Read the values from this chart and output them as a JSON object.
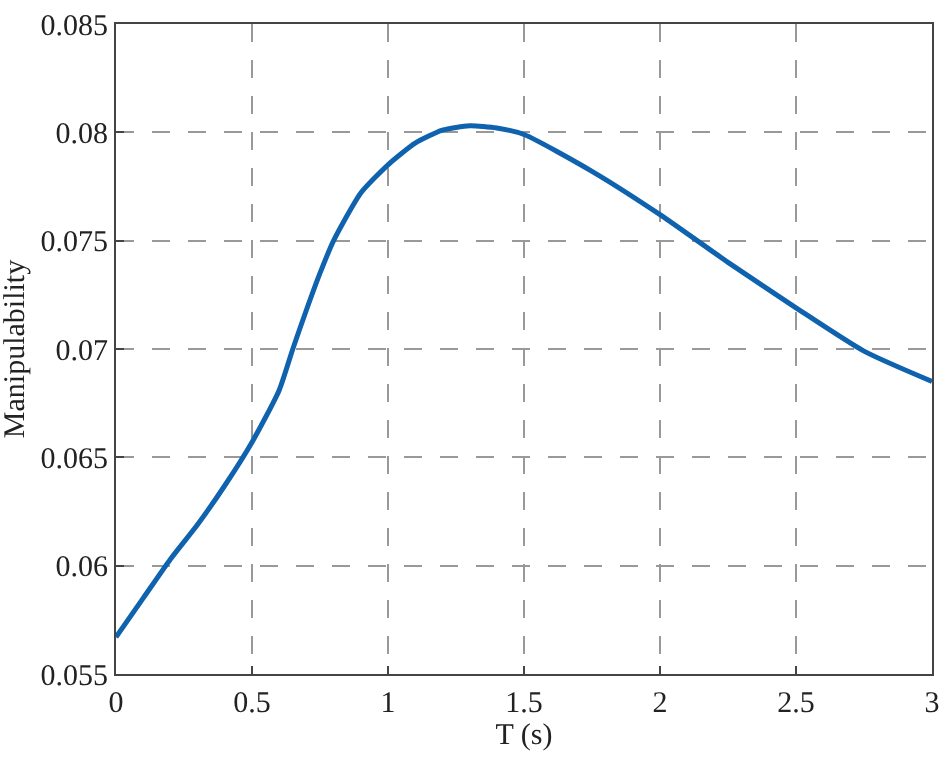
{
  "chart_data": {
    "type": "line",
    "xlabel": "T (s)",
    "ylabel": "Manipulability",
    "x": [
      0,
      0.1,
      0.2,
      0.3,
      0.4,
      0.5,
      0.6,
      0.65,
      0.7,
      0.75,
      0.8,
      0.9,
      1,
      1.1,
      1.2,
      1.3,
      1.4,
      1.5,
      1.75,
      2,
      2.25,
      2.5,
      2.75,
      3
    ],
    "series": [
      {
        "color": "#0f62ad",
        "values": [
          0.0567,
          0.0585,
          0.0603,
          0.0619,
          0.0637,
          0.0657,
          0.0681,
          0.07,
          0.0718,
          0.0735,
          0.075,
          0.0772,
          0.0785,
          0.0795,
          0.0801,
          0.0803,
          0.0802,
          0.0799,
          0.0782,
          0.0762,
          0.074,
          0.0719,
          0.0699,
          0.0685
        ]
      }
    ],
    "xlim": [
      0,
      3
    ],
    "xticks": [
      0,
      0.5,
      1,
      1.5,
      2,
      2.5,
      3
    ],
    "ylim": [
      0.055,
      0.085
    ],
    "yticks": [
      0.055,
      0.06,
      0.065,
      0.07,
      0.075,
      0.08,
      0.085
    ],
    "grid": true,
    "marker": "none",
    "line_style": "solid"
  }
}
